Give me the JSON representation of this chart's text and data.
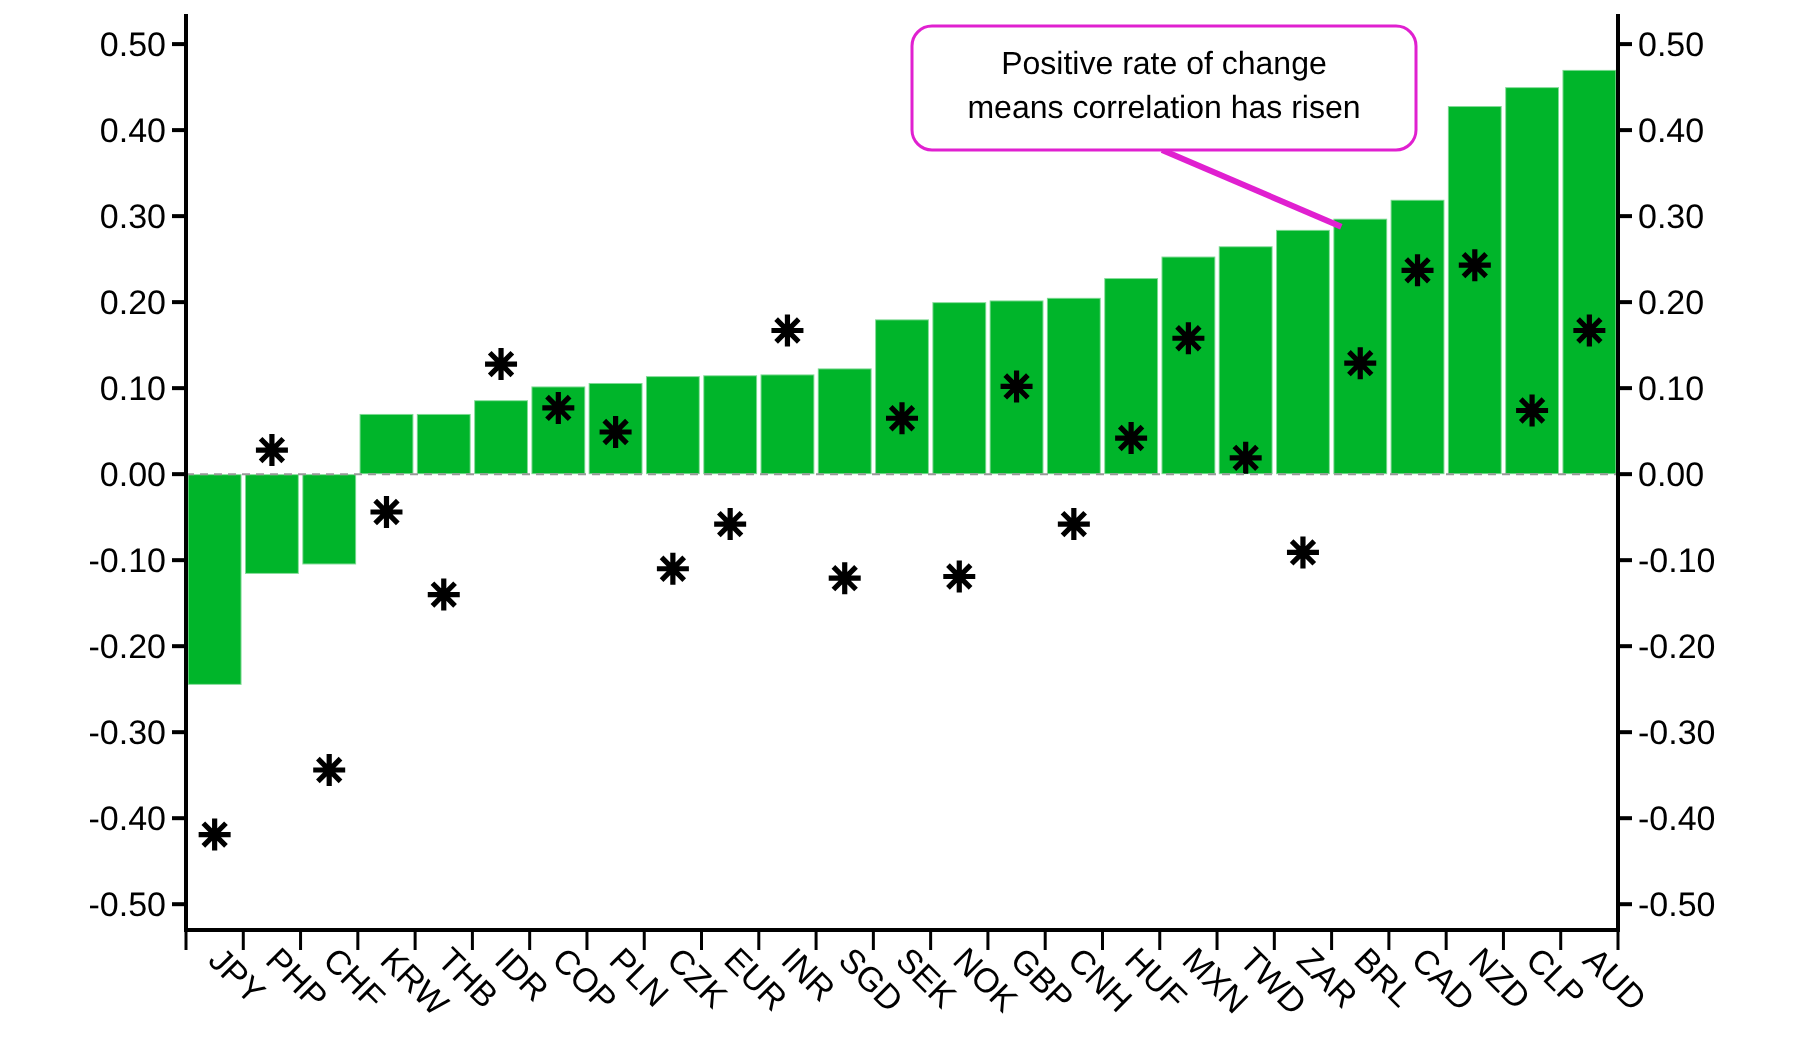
{
  "chart_data": {
    "type": "bar",
    "categories": [
      "JPY",
      "PHP",
      "CHF",
      "KRW",
      "THB",
      "IDR",
      "COP",
      "PLN",
      "CZK",
      "EUR",
      "INR",
      "SGD",
      "SEK",
      "NOK",
      "GBP",
      "CNH",
      "HUF",
      "MXN",
      "TWD",
      "ZAR",
      "BRL",
      "CAD",
      "NZD",
      "CLP",
      "AUD"
    ],
    "series": [
      {
        "color": "#00b52a",
        "values": [
          -0.245,
          -0.116,
          -0.105,
          0.07,
          0.07,
          0.086,
          0.102,
          0.106,
          0.114,
          0.115,
          0.116,
          0.123,
          0.18,
          0.2,
          0.202,
          0.205,
          0.228,
          0.253,
          0.265,
          0.284,
          0.297,
          0.319,
          0.428,
          0.45,
          0.47
        ]
      },
      {
        "type": "scatter",
        "color": "#000000",
        "marker": "cross",
        "values": [
          -0.419,
          0.028,
          -0.344,
          -0.044,
          -0.14,
          0.128,
          0.077,
          0.049,
          -0.11,
          -0.058,
          0.167,
          -0.121,
          0.065,
          -0.119,
          0.102,
          -0.058,
          0.042,
          0.158,
          0.019,
          -0.091,
          0.129,
          0.237,
          0.243,
          0.074,
          0.167
        ]
      }
    ],
    "ylim": [
      -0.53,
      0.535
    ],
    "yticks": [
      {
        "value": -0.5,
        "label": "-0.50"
      },
      {
        "value": -0.4,
        "label": "-0.40"
      },
      {
        "value": -0.3,
        "label": "-0.30"
      },
      {
        "value": -0.2,
        "label": "-0.20"
      },
      {
        "value": -0.1,
        "label": "-0.10"
      },
      {
        "value": 0,
        "label": "0.00"
      },
      {
        "value": 0.1,
        "label": "0.10"
      },
      {
        "value": 0.2,
        "label": "0.20"
      },
      {
        "value": 0.3,
        "label": "0.30"
      },
      {
        "value": 0.4,
        "label": "0.40"
      },
      {
        "value": 0.5,
        "label": "0.50"
      }
    ],
    "y2lim": [
      -0.53,
      0.535
    ],
    "y2ticks": [
      {
        "value": -0.5,
        "label": "-0.50"
      },
      {
        "value": -0.4,
        "label": "-0.40"
      },
      {
        "value": -0.3,
        "label": "-0.30"
      },
      {
        "value": -0.2,
        "label": "-0.20"
      },
      {
        "value": -0.1,
        "label": "-0.10"
      },
      {
        "value": 0,
        "label": "0.00"
      },
      {
        "value": 0.1,
        "label": "0.10"
      },
      {
        "value": 0.2,
        "label": "0.20"
      },
      {
        "value": 0.3,
        "label": "0.30"
      },
      {
        "value": 0.4,
        "label": "0.40"
      },
      {
        "value": 0.5,
        "label": "0.50"
      }
    ],
    "ref_lines": [
      {
        "axis": "y",
        "value": 0,
        "color": "#999999",
        "line_style": "dashed"
      }
    ],
    "annotations": [
      {
        "text": "Positive rate of change\nmeans correlation has risen",
        "x": "BRL",
        "y": 0.297
      }
    ],
    "grid": false
  }
}
